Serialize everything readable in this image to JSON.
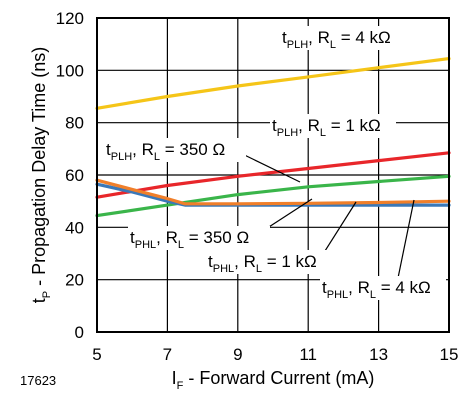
{
  "chart_data": {
    "type": "line",
    "figure_id": "17623",
    "xlabel": {
      "main": "I",
      "sub": "F",
      "rest": " - Forward Current (mA)"
    },
    "ylabel": {
      "main": "t",
      "sub": "P",
      "rest": " - Propagation Delay Time (ns)"
    },
    "xlim": [
      5,
      15
    ],
    "ylim": [
      0,
      120
    ],
    "x_ticks": [
      5,
      7,
      9,
      11,
      13,
      15
    ],
    "y_ticks": [
      0,
      20,
      40,
      60,
      80,
      100,
      120
    ],
    "grid": true,
    "series": [
      {
        "name": "tPLH, RL = 4 kΩ",
        "color": "#f5c518",
        "points": [
          [
            5,
            85.5
          ],
          [
            7,
            90
          ],
          [
            9,
            94
          ],
          [
            11,
            97.5
          ],
          [
            13,
            101
          ],
          [
            15,
            104.5
          ]
        ]
      },
      {
        "name": "tPLH, RL = 1 kΩ",
        "color": "#e8262a",
        "points": [
          [
            5,
            51.5
          ],
          [
            7,
            56
          ],
          [
            9,
            59.5
          ],
          [
            11,
            62.5
          ],
          [
            13,
            65.5
          ],
          [
            15,
            68.5
          ]
        ]
      },
      {
        "name": "tPLH, RL = 350 Ω",
        "color": "#3ab54a",
        "points": [
          [
            5,
            44.5
          ],
          [
            7,
            48.5
          ],
          [
            9,
            52.5
          ],
          [
            11,
            55.5
          ],
          [
            13,
            57.5
          ],
          [
            15,
            59.5
          ]
        ]
      },
      {
        "name": "tPHL, RL = 4 kΩ",
        "color": "#3a78b8",
        "points": [
          [
            5,
            56.5
          ],
          [
            6,
            53.5
          ],
          [
            7,
            50
          ],
          [
            7.5,
            48.5
          ],
          [
            9,
            48.5
          ],
          [
            11,
            48.5
          ],
          [
            13,
            48.5
          ],
          [
            15,
            48.5
          ]
        ]
      },
      {
        "name": "tPHL, RL = 1 kΩ",
        "color": "#f07f2a",
        "points": [
          [
            5,
            58
          ],
          [
            6,
            54.5
          ],
          [
            7,
            51
          ],
          [
            7.5,
            49
          ],
          [
            9,
            49
          ],
          [
            11,
            49.2
          ],
          [
            13,
            49.5
          ],
          [
            15,
            50
          ]
        ]
      }
    ],
    "annotations": [
      {
        "id": "ann-plh-4k",
        "t": "t",
        "tsub": "PLH",
        "r": ", R",
        "rsub": "L",
        "val": " = 4 kΩ"
      },
      {
        "id": "ann-plh-1k",
        "t": "t",
        "tsub": "PLH",
        "r": ", R",
        "rsub": "L",
        "val": " = 1 kΩ"
      },
      {
        "id": "ann-plh-350",
        "t": "t",
        "tsub": "PLH",
        "r": ", R",
        "rsub": "L",
        "val": " = 350 Ω"
      },
      {
        "id": "ann-phl-350",
        "t": "t",
        "tsub": "PHL",
        "r": ", R",
        "rsub": "L",
        "val": " = 350 Ω"
      },
      {
        "id": "ann-phl-1k",
        "t": "t",
        "tsub": "PHL",
        "r": ", R",
        "rsub": "L",
        "val": " = 1 kΩ"
      },
      {
        "id": "ann-phl-4k",
        "t": "t",
        "tsub": "PHL",
        "r": ", R",
        "rsub": "L",
        "val": " = 4 kΩ"
      }
    ]
  }
}
